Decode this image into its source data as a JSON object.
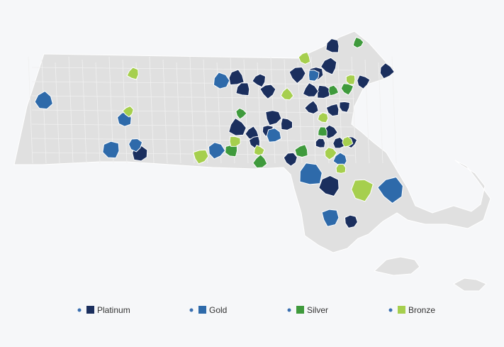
{
  "legend": {
    "dot_color": "#3a6fb0",
    "items": [
      {
        "label": "Platinum",
        "color": "#1b2f5e"
      },
      {
        "label": "Gold",
        "color": "#2e6aaa"
      },
      {
        "label": "Silver",
        "color": "#3f9a3c"
      },
      {
        "label": "Bronze",
        "color": "#a6cf4e"
      }
    ]
  }
}
